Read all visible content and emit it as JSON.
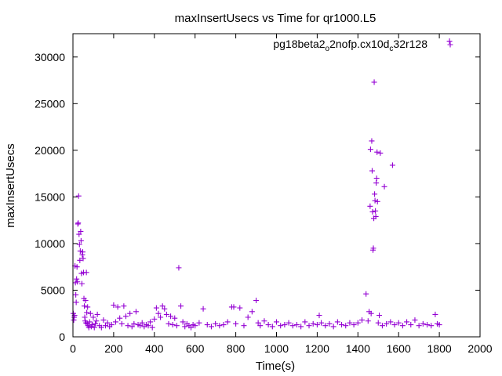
{
  "chart_data": {
    "type": "scatter",
    "title": "maxInsertUsecs vs Time for qr1000.L5",
    "xlabel": "Time(s)",
    "ylabel": "maxInsertUsecs",
    "xlim": [
      0,
      2000
    ],
    "ylim": [
      0,
      32500
    ],
    "xticks": [
      "0",
      "200",
      "400",
      "600",
      "800",
      "1000",
      "1200",
      "1400",
      "1600",
      "1800",
      "2000"
    ],
    "yticks": [
      "0",
      "5000",
      "10000",
      "15000",
      "20000",
      "25000",
      "30000"
    ],
    "legend": {
      "placement": "top-right",
      "parts": [
        {
          "text": "pg18beta2",
          "sub": false
        },
        {
          "text": "o",
          "sub": true
        },
        {
          "text": "2nofp.cx10d",
          "sub": false
        },
        {
          "text": "c",
          "sub": true
        },
        {
          "text": "32r128",
          "sub": false
        }
      ]
    },
    "color": "#9400d3",
    "series": [
      {
        "marker": "plus",
        "points": [
          [
            2,
            2500
          ],
          [
            4,
            1800
          ],
          [
            6,
            2100
          ],
          [
            8,
            2300
          ],
          [
            10,
            7600
          ],
          [
            12,
            5800
          ],
          [
            14,
            4500
          ],
          [
            16,
            3700
          ],
          [
            18,
            6200
          ],
          [
            20,
            7500
          ],
          [
            22,
            5900
          ],
          [
            24,
            12100
          ],
          [
            26,
            12200
          ],
          [
            28,
            15100
          ],
          [
            30,
            11000
          ],
          [
            32,
            9900
          ],
          [
            34,
            8200
          ],
          [
            36,
            9200
          ],
          [
            38,
            11300
          ],
          [
            40,
            10300
          ],
          [
            42,
            6800
          ],
          [
            44,
            5700
          ],
          [
            46,
            8800
          ],
          [
            48,
            9100
          ],
          [
            50,
            8400
          ],
          [
            52,
            6900
          ],
          [
            54,
            4100
          ],
          [
            56,
            3300
          ],
          [
            58,
            2100
          ],
          [
            60,
            1700
          ],
          [
            62,
            3900
          ],
          [
            64,
            1500
          ],
          [
            66,
            6900
          ],
          [
            68,
            2600
          ],
          [
            70,
            1400
          ],
          [
            72,
            3200
          ],
          [
            74,
            1200
          ],
          [
            78,
            1000
          ],
          [
            82,
            1600
          ],
          [
            86,
            2500
          ],
          [
            90,
            1100
          ],
          [
            95,
            1300
          ],
          [
            100,
            2100
          ],
          [
            105,
            1000
          ],
          [
            110,
            1400
          ],
          [
            115,
            1700
          ],
          [
            120,
            2400
          ],
          [
            130,
            1200
          ],
          [
            140,
            1000
          ],
          [
            150,
            1800
          ],
          [
            160,
            1200
          ],
          [
            170,
            1500
          ],
          [
            180,
            1100
          ],
          [
            190,
            1300
          ],
          [
            200,
            3400
          ],
          [
            210,
            1600
          ],
          [
            220,
            3200
          ],
          [
            230,
            2000
          ],
          [
            240,
            1400
          ],
          [
            250,
            3300
          ],
          [
            260,
            2200
          ],
          [
            270,
            1200
          ],
          [
            280,
            2500
          ],
          [
            290,
            1100
          ],
          [
            300,
            1400
          ],
          [
            310,
            2700
          ],
          [
            320,
            1300
          ],
          [
            330,
            1200
          ],
          [
            340,
            1500
          ],
          [
            350,
            1100
          ],
          [
            360,
            1300
          ],
          [
            370,
            1200
          ],
          [
            380,
            1600
          ],
          [
            390,
            1000
          ],
          [
            400,
            1900
          ],
          [
            410,
            3100
          ],
          [
            420,
            2500
          ],
          [
            430,
            2100
          ],
          [
            440,
            3300
          ],
          [
            450,
            3000
          ],
          [
            460,
            2400
          ],
          [
            470,
            1400
          ],
          [
            480,
            2200
          ],
          [
            490,
            1300
          ],
          [
            500,
            2000
          ],
          [
            510,
            1200
          ],
          [
            520,
            7400
          ],
          [
            530,
            3300
          ],
          [
            540,
            1600
          ],
          [
            550,
            1100
          ],
          [
            560,
            1400
          ],
          [
            570,
            1200
          ],
          [
            580,
            1000
          ],
          [
            590,
            1300
          ],
          [
            600,
            1200
          ],
          [
            620,
            1500
          ],
          [
            640,
            3000
          ],
          [
            660,
            1300
          ],
          [
            680,
            1100
          ],
          [
            700,
            1400
          ],
          [
            720,
            1200
          ],
          [
            740,
            1300
          ],
          [
            760,
            1600
          ],
          [
            780,
            3200
          ],
          [
            790,
            3200
          ],
          [
            800,
            1400
          ],
          [
            820,
            3100
          ],
          [
            840,
            1200
          ],
          [
            860,
            2100
          ],
          [
            880,
            2700
          ],
          [
            900,
            3900
          ],
          [
            910,
            1500
          ],
          [
            920,
            1200
          ],
          [
            940,
            1700
          ],
          [
            960,
            1300
          ],
          [
            980,
            1100
          ],
          [
            1000,
            1600
          ],
          [
            1020,
            1200
          ],
          [
            1040,
            1300
          ],
          [
            1060,
            1500
          ],
          [
            1080,
            1200
          ],
          [
            1100,
            1300
          ],
          [
            1120,
            1100
          ],
          [
            1140,
            1600
          ],
          [
            1160,
            1200
          ],
          [
            1180,
            1400
          ],
          [
            1200,
            1300
          ],
          [
            1210,
            2300
          ],
          [
            1220,
            1500
          ],
          [
            1240,
            1200
          ],
          [
            1260,
            1400
          ],
          [
            1280,
            1100
          ],
          [
            1300,
            1600
          ],
          [
            1320,
            1300
          ],
          [
            1340,
            1200
          ],
          [
            1360,
            1500
          ],
          [
            1380,
            1300
          ],
          [
            1400,
            1500
          ],
          [
            1420,
            1800
          ],
          [
            1440,
            4600
          ],
          [
            1450,
            1700
          ],
          [
            1455,
            2700
          ],
          [
            1460,
            14000
          ],
          [
            1462,
            20100
          ],
          [
            1465,
            2500
          ],
          [
            1468,
            21000
          ],
          [
            1470,
            17800
          ],
          [
            1472,
            13400
          ],
          [
            1474,
            9300
          ],
          [
            1476,
            9500
          ],
          [
            1478,
            12700
          ],
          [
            1480,
            27300
          ],
          [
            1482,
            15300
          ],
          [
            1484,
            14600
          ],
          [
            1486,
            13500
          ],
          [
            1488,
            12900
          ],
          [
            1490,
            16500
          ],
          [
            1492,
            17000
          ],
          [
            1494,
            19800
          ],
          [
            1496,
            14500
          ],
          [
            1500,
            1500
          ],
          [
            1505,
            2300
          ],
          [
            1510,
            19700
          ],
          [
            1520,
            1200
          ],
          [
            1530,
            16100
          ],
          [
            1540,
            1400
          ],
          [
            1560,
            1600
          ],
          [
            1570,
            18400
          ],
          [
            1580,
            1300
          ],
          [
            1600,
            1500
          ],
          [
            1620,
            1200
          ],
          [
            1640,
            1600
          ],
          [
            1660,
            1300
          ],
          [
            1680,
            1800
          ],
          [
            1700,
            1200
          ],
          [
            1720,
            1400
          ],
          [
            1740,
            1300
          ],
          [
            1760,
            1200
          ],
          [
            1780,
            2400
          ],
          [
            1790,
            1400
          ],
          [
            1800,
            1300
          ],
          [
            1850,
            31700
          ]
        ]
      }
    ]
  }
}
